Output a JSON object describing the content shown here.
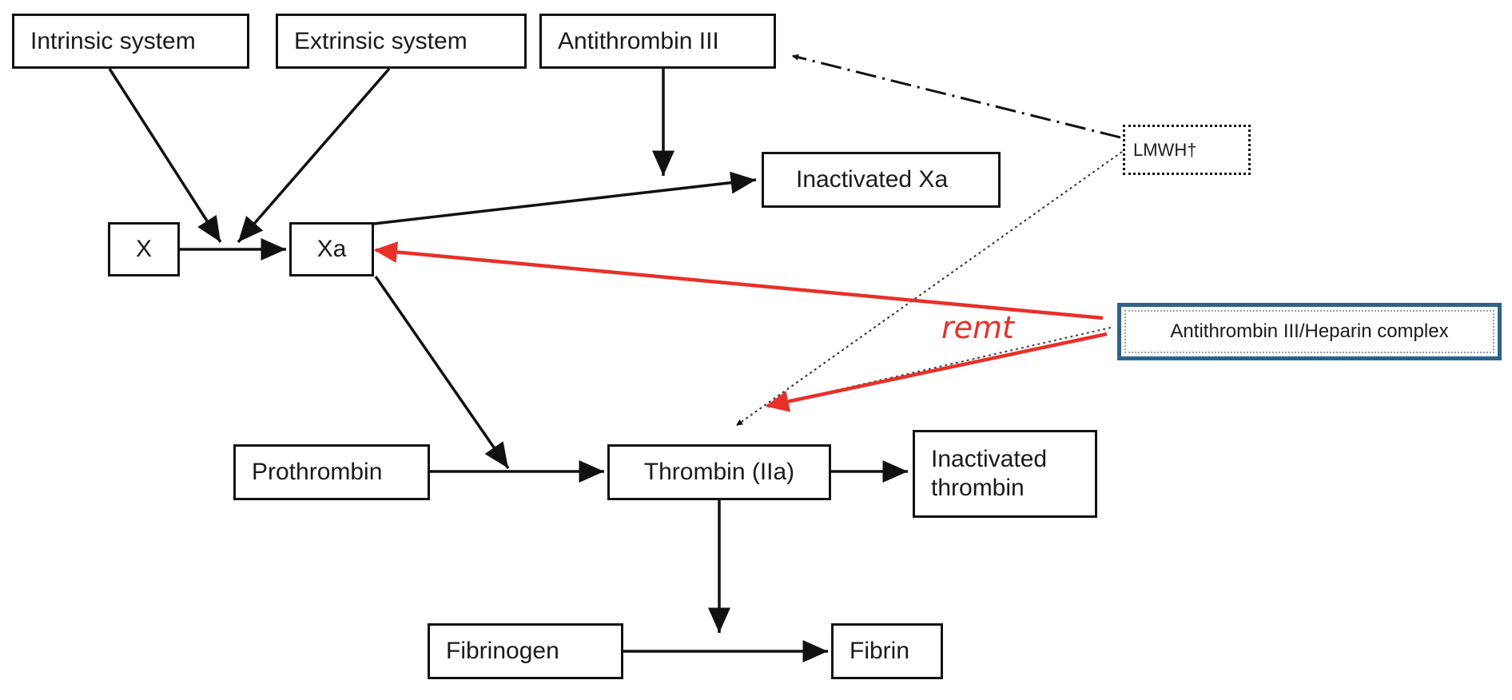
{
  "nodes": {
    "intrinsic": "Intrinsic system",
    "extrinsic": "Extrinsic system",
    "antithrombin": "Antithrombin III",
    "inactivated_xa": "Inactivated Xa",
    "x": "X",
    "xa": "Xa",
    "lmwh": "LMWH†",
    "complex": "Antithrombin III/Heparin complex",
    "prothrombin": "Prothrombin",
    "thrombin": "Thrombin (IIa)",
    "inactivated_thrombin": "Inactivated thrombin",
    "fibrinogen": "Fibrinogen",
    "fibrin": "Fibrin"
  },
  "annotation": "remt",
  "colors": {
    "line": "#111111",
    "highlight": "#e8302a",
    "complex_border": "#2d6289"
  }
}
